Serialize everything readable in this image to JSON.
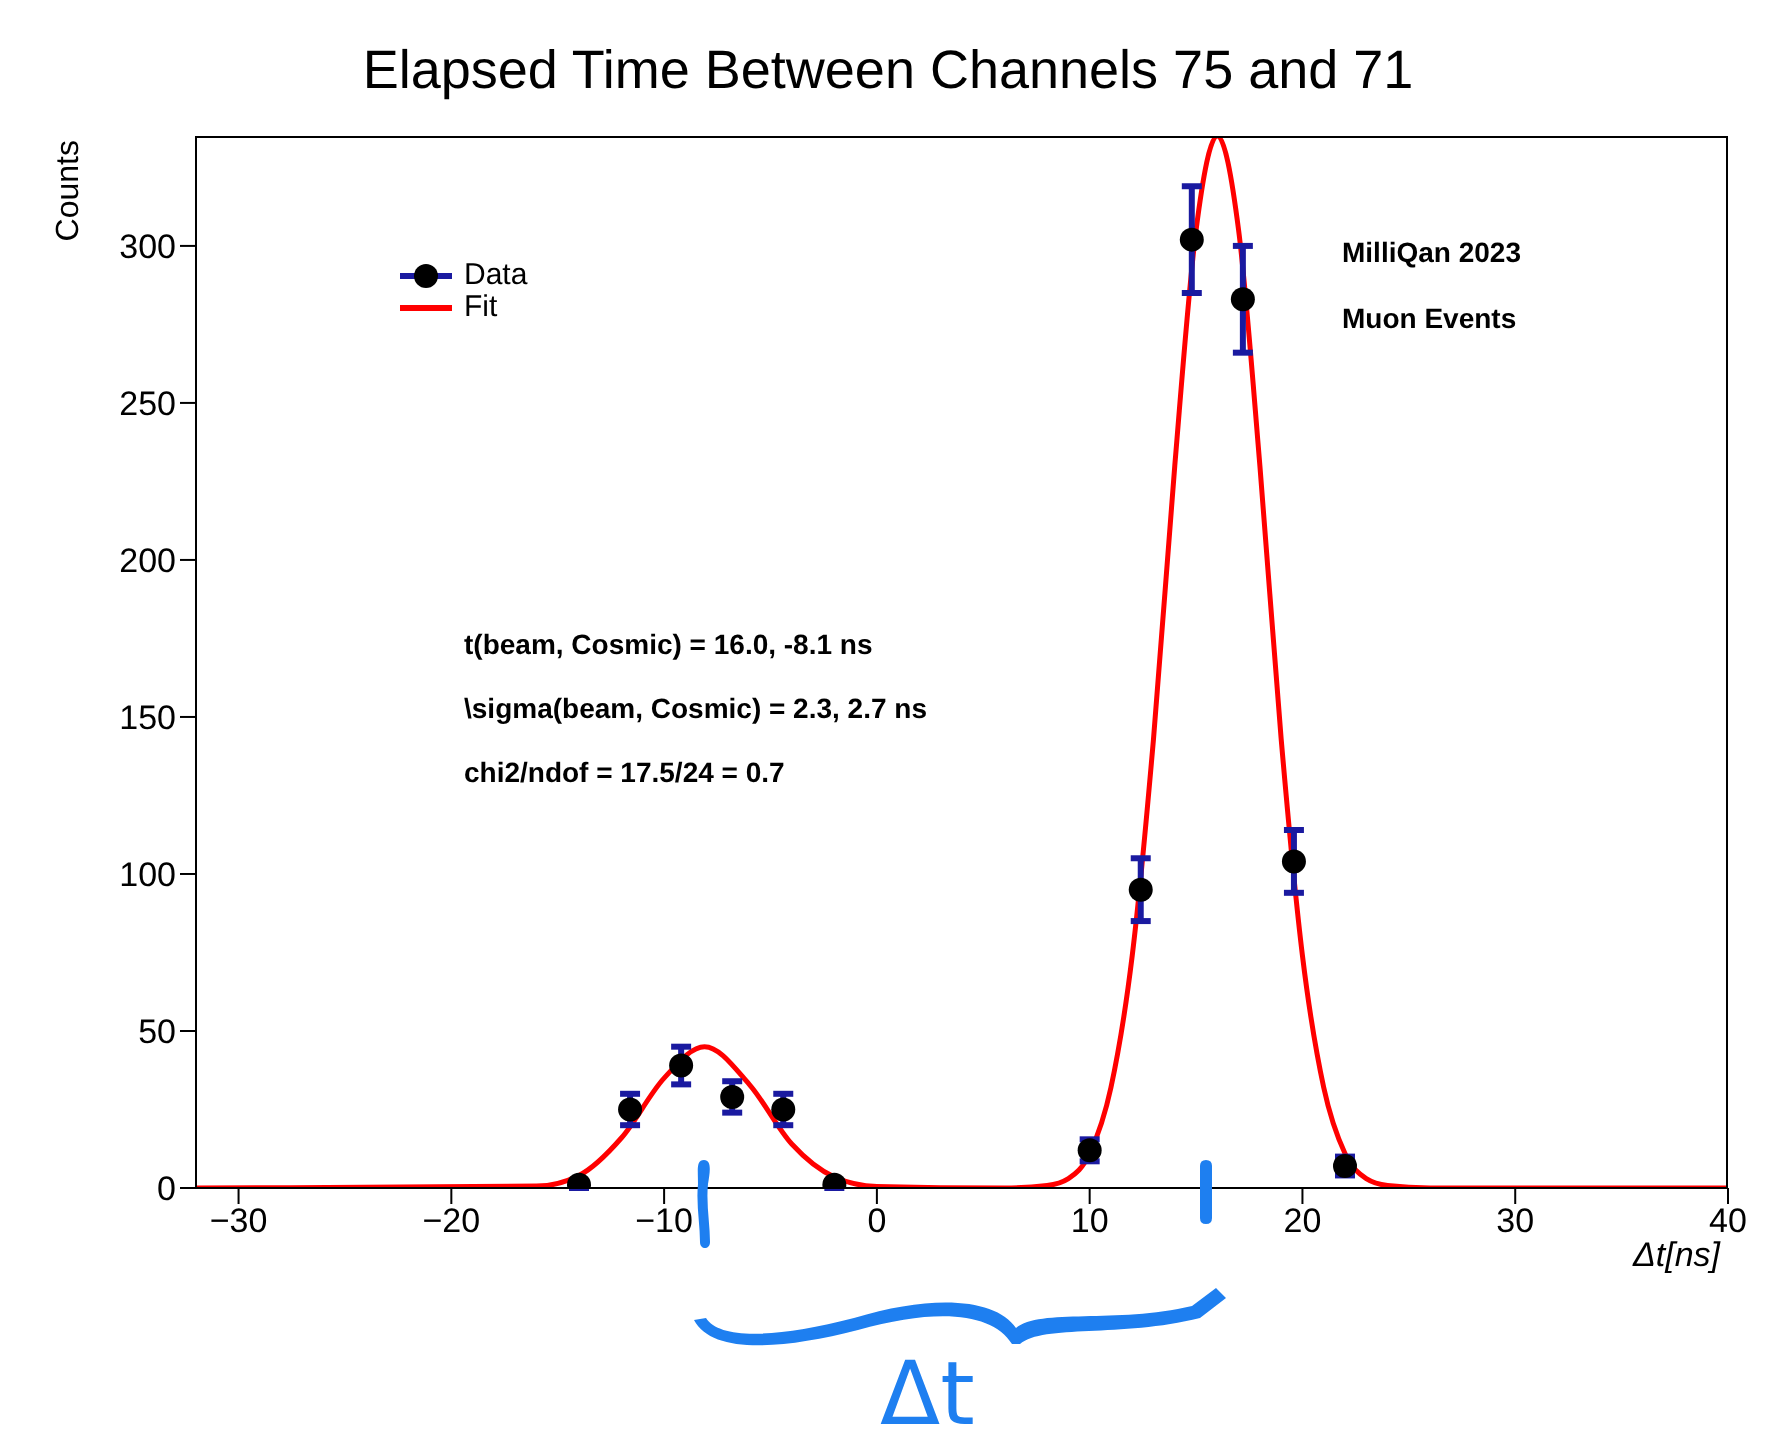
{
  "chart_data": {
    "type": "scatter",
    "title": "Elapsed Time Between Channels 75 and 71",
    "xlabel": "Δt[ns]",
    "ylabel": "Counts",
    "xlim": [
      -32,
      40
    ],
    "xticks": [
      -30,
      -20,
      -10,
      0,
      10,
      20,
      30,
      40
    ],
    "ylim": [
      0,
      335
    ],
    "yticks": [
      0,
      50,
      100,
      150,
      200,
      250,
      300
    ],
    "legend": "top left",
    "marker": "circle",
    "series": [
      {
        "name": "Data",
        "color": "#000000",
        "x": [
          -14.0,
          -11.6,
          -9.2,
          -6.8,
          -4.4,
          -2.0,
          10.0,
          12.4,
          14.8,
          17.2,
          19.6,
          22.0
        ],
        "values": [
          1,
          25,
          39,
          29,
          25,
          1,
          12,
          95,
          302,
          283,
          104,
          7
        ],
        "errors": [
          1,
          5,
          6,
          5,
          5,
          1,
          3.5,
          10,
          17,
          17,
          10,
          3
        ]
      },
      {
        "name": "Fit",
        "type": "line",
        "color": "#ff0000",
        "marker": "none",
        "line_style": "solid",
        "x": [
          -32,
          -16,
          -14,
          -12,
          -10,
          -8.1,
          -6,
          -4,
          -2,
          0,
          6,
          8,
          9,
          10,
          11,
          12,
          13,
          14,
          15,
          16,
          17,
          18,
          19,
          20,
          21,
          22,
          23,
          24,
          26,
          40
        ],
        "values": [
          0,
          0.6,
          4,
          16,
          35,
          45,
          33,
          14,
          3.5,
          0.5,
          0,
          0.8,
          3,
          11,
          32,
          74,
          143,
          230,
          305,
          335,
          305,
          230,
          143,
          74,
          32,
          11,
          3,
          0.8,
          0,
          0
        ]
      }
    ],
    "annotations": [
      "t(beam, Cosmic) = 16.0, -8.1  ns",
      "\\sigma(beam, Cosmic) = 2.3, 2.7 ns",
      "chi2/ndof = 17.5/24 = 0.7",
      "MilliQan 2023",
      "Muon Events",
      "Δt"
    ]
  }
}
